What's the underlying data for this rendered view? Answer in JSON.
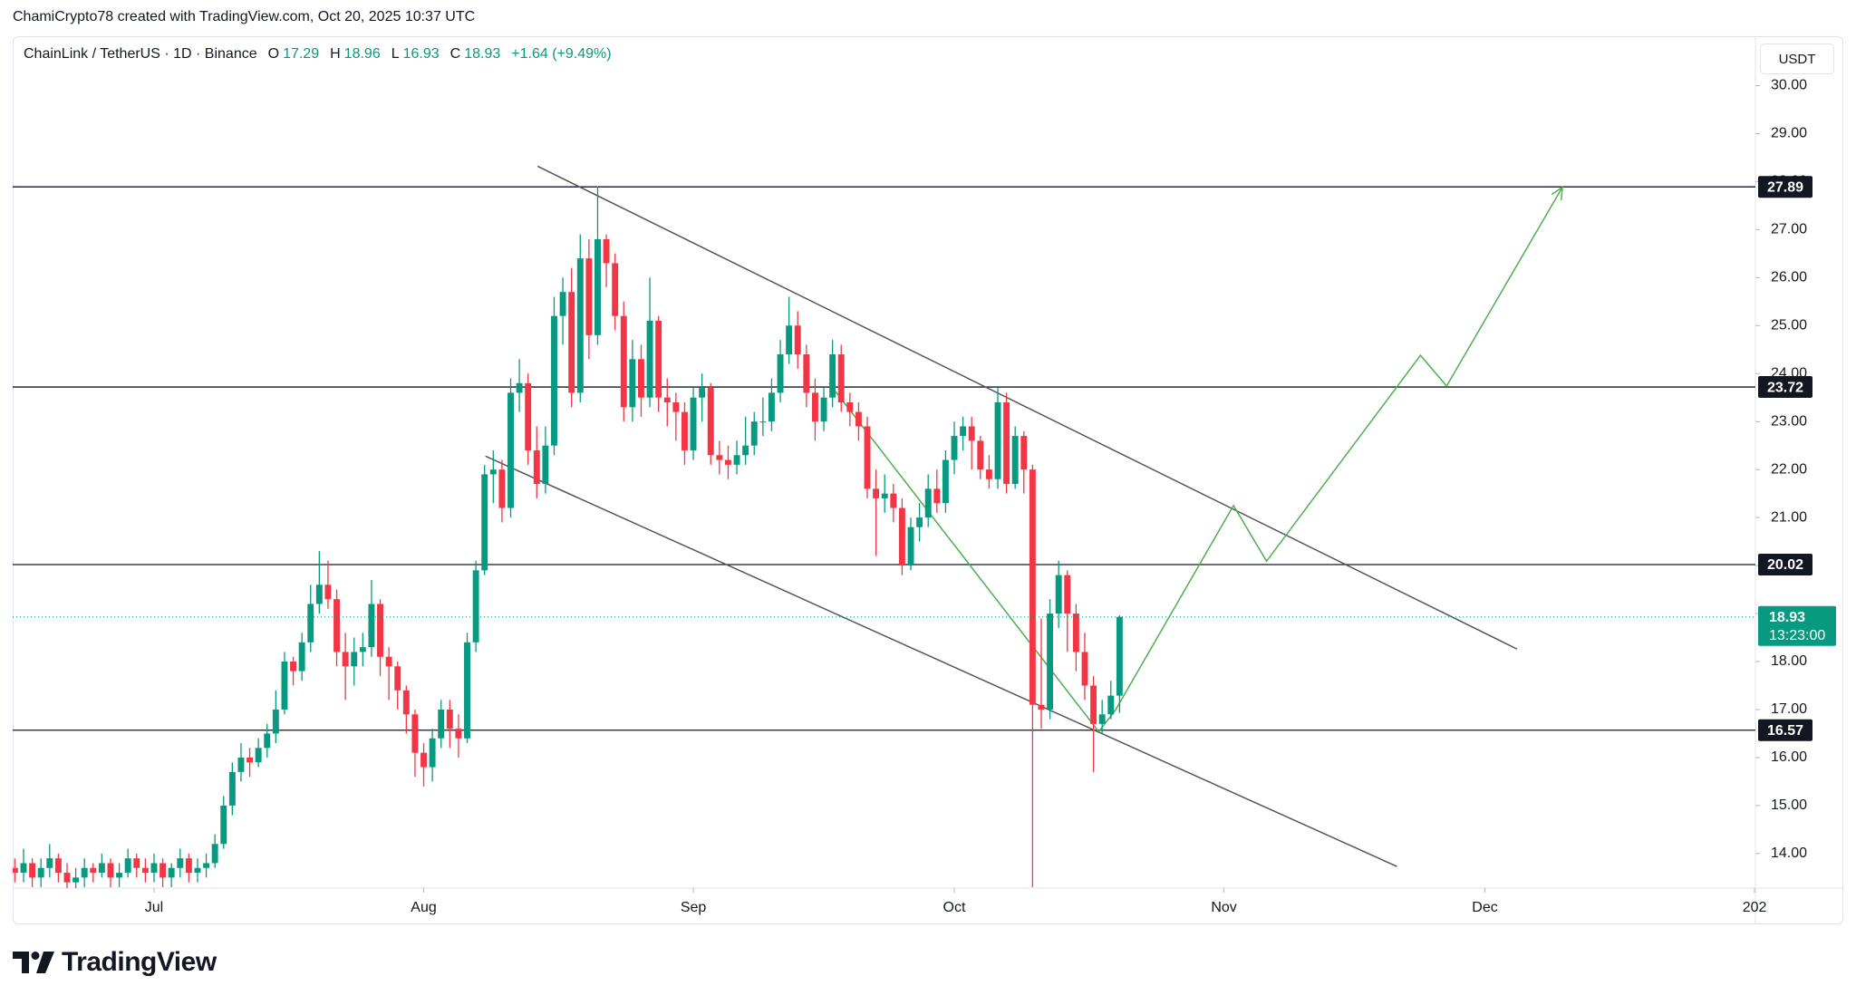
{
  "watermark": "ChamiCrypto78 created with TradingView.com, Oct 20, 2025 10:37 UTC",
  "brand": "TradingView",
  "chart_data": {
    "type": "candlestick",
    "symbol": "ChainLink / TetherUS · 1D · Binance",
    "legend": [
      {
        "label": "O",
        "value": 17.29
      },
      {
        "label": "H",
        "value": 18.96
      },
      {
        "label": "L",
        "value": 16.93
      },
      {
        "label": "C",
        "value": 18.93
      }
    ],
    "change": "+1.64 (+9.49%)",
    "currency": "USDT",
    "up_color": "#089981",
    "down_color": "#f23645",
    "candles": [
      [
        13.7,
        13.9,
        13.4,
        13.6
      ],
      [
        13.6,
        14.1,
        13.4,
        13.8
      ],
      [
        13.8,
        13.9,
        13.3,
        13.5
      ],
      [
        13.5,
        13.9,
        13.3,
        13.7
      ],
      [
        13.7,
        14.2,
        13.5,
        13.9
      ],
      [
        13.9,
        14.0,
        13.4,
        13.6
      ],
      [
        13.6,
        13.8,
        13.2,
        13.4
      ],
      [
        13.4,
        13.7,
        13.2,
        13.5
      ],
      [
        13.5,
        13.9,
        13.3,
        13.7
      ],
      [
        13.7,
        13.8,
        13.4,
        13.6
      ],
      [
        13.6,
        14.0,
        13.5,
        13.8
      ],
      [
        13.8,
        13.9,
        13.3,
        13.5
      ],
      [
        13.5,
        13.8,
        13.3,
        13.6
      ],
      [
        13.6,
        14.1,
        13.5,
        13.9
      ],
      [
        13.9,
        14.0,
        13.5,
        13.7
      ],
      [
        13.7,
        13.9,
        13.4,
        13.6
      ],
      [
        13.6,
        14.0,
        13.4,
        13.8
      ],
      [
        13.8,
        13.9,
        13.3,
        13.5
      ],
      [
        13.5,
        13.8,
        13.3,
        13.7
      ],
      [
        13.7,
        14.1,
        13.5,
        13.9
      ],
      [
        13.9,
        14.0,
        13.4,
        13.6
      ],
      [
        13.6,
        13.9,
        13.4,
        13.7
      ],
      [
        13.7,
        14.0,
        13.5,
        13.8
      ],
      [
        13.8,
        14.4,
        13.7,
        14.2
      ],
      [
        14.2,
        15.2,
        14.1,
        15.0
      ],
      [
        15.0,
        15.9,
        14.8,
        15.7
      ],
      [
        15.7,
        16.3,
        15.5,
        16.0
      ],
      [
        16.0,
        16.2,
        15.6,
        15.9
      ],
      [
        15.9,
        16.4,
        15.8,
        16.2
      ],
      [
        16.2,
        16.7,
        16.0,
        16.5
      ],
      [
        16.5,
        17.4,
        16.3,
        17.0
      ],
      [
        17.0,
        18.2,
        16.9,
        18.0
      ],
      [
        18.0,
        18.1,
        17.5,
        17.8
      ],
      [
        17.8,
        18.6,
        17.6,
        18.4
      ],
      [
        18.4,
        19.6,
        18.2,
        19.2
      ],
      [
        19.2,
        20.3,
        19.0,
        19.6
      ],
      [
        19.6,
        20.1,
        19.1,
        19.3
      ],
      [
        19.3,
        19.5,
        17.9,
        18.2
      ],
      [
        18.2,
        18.6,
        17.2,
        17.9
      ],
      [
        17.9,
        18.5,
        17.5,
        18.2
      ],
      [
        18.2,
        18.6,
        17.9,
        18.3
      ],
      [
        18.3,
        19.7,
        18.1,
        19.2
      ],
      [
        19.2,
        19.3,
        17.7,
        18.1
      ],
      [
        18.1,
        18.3,
        17.2,
        17.9
      ],
      [
        17.9,
        18.0,
        17.0,
        17.4
      ],
      [
        17.4,
        17.5,
        16.5,
        16.9
      ],
      [
        16.9,
        17.0,
        15.6,
        16.1
      ],
      [
        16.1,
        16.3,
        15.4,
        15.8
      ],
      [
        15.8,
        16.6,
        15.5,
        16.4
      ],
      [
        16.4,
        17.2,
        16.2,
        17.0
      ],
      [
        17.0,
        17.2,
        16.2,
        16.6
      ],
      [
        16.6,
        16.9,
        16.0,
        16.4
      ],
      [
        16.4,
        18.6,
        16.3,
        18.4
      ],
      [
        18.4,
        20.1,
        18.2,
        19.9
      ],
      [
        19.9,
        22.1,
        19.8,
        21.9
      ],
      [
        21.9,
        22.4,
        21.3,
        22.0
      ],
      [
        22.0,
        22.2,
        20.9,
        21.2
      ],
      [
        21.2,
        23.9,
        21.0,
        23.6
      ],
      [
        23.6,
        24.3,
        23.2,
        23.8
      ],
      [
        23.8,
        24.0,
        22.1,
        22.4
      ],
      [
        22.4,
        22.9,
        21.4,
        21.7
      ],
      [
        21.7,
        22.9,
        21.5,
        22.5
      ],
      [
        22.5,
        25.6,
        22.3,
        25.2
      ],
      [
        25.2,
        26.0,
        24.6,
        25.7
      ],
      [
        25.7,
        26.2,
        23.3,
        23.6
      ],
      [
        23.6,
        26.9,
        23.4,
        26.4
      ],
      [
        26.4,
        26.8,
        24.3,
        24.8
      ],
      [
        24.8,
        27.9,
        24.6,
        26.8
      ],
      [
        26.8,
        26.9,
        25.8,
        26.3
      ],
      [
        26.3,
        26.5,
        24.9,
        25.2
      ],
      [
        25.2,
        25.5,
        23.0,
        23.3
      ],
      [
        23.3,
        24.7,
        23.0,
        24.3
      ],
      [
        24.3,
        24.6,
        23.1,
        23.5
      ],
      [
        23.5,
        26.0,
        23.3,
        25.1
      ],
      [
        25.1,
        25.2,
        23.2,
        23.5
      ],
      [
        23.5,
        23.9,
        22.9,
        23.4
      ],
      [
        23.4,
        23.6,
        22.6,
        23.2
      ],
      [
        23.2,
        23.4,
        22.1,
        22.4
      ],
      [
        22.4,
        23.7,
        22.2,
        23.5
      ],
      [
        23.5,
        24.0,
        23.0,
        23.7
      ],
      [
        23.7,
        23.8,
        22.1,
        22.3
      ],
      [
        22.3,
        22.6,
        21.9,
        22.2
      ],
      [
        22.2,
        22.5,
        21.8,
        22.1
      ],
      [
        22.1,
        22.6,
        21.9,
        22.3
      ],
      [
        22.3,
        23.1,
        22.1,
        22.5
      ],
      [
        22.5,
        23.2,
        22.3,
        23.0
      ],
      [
        23.0,
        23.5,
        22.7,
        23.0
      ],
      [
        23.0,
        23.9,
        22.8,
        23.6
      ],
      [
        23.6,
        24.7,
        23.4,
        24.4
      ],
      [
        24.4,
        25.6,
        24.2,
        25.0
      ],
      [
        25.0,
        25.3,
        24.1,
        24.4
      ],
      [
        24.4,
        24.6,
        23.3,
        23.6
      ],
      [
        23.6,
        23.9,
        22.6,
        23.0
      ],
      [
        23.0,
        23.7,
        22.8,
        23.5
      ],
      [
        23.5,
        24.7,
        23.3,
        24.4
      ],
      [
        24.4,
        24.6,
        23.2,
        23.4
      ],
      [
        23.4,
        23.6,
        22.9,
        23.2
      ],
      [
        23.2,
        23.4,
        22.6,
        22.9
      ],
      [
        22.9,
        23.1,
        21.4,
        21.6
      ],
      [
        21.6,
        22.0,
        20.2,
        21.4
      ],
      [
        21.4,
        21.9,
        21.1,
        21.5
      ],
      [
        21.5,
        21.7,
        20.9,
        21.2
      ],
      [
        21.2,
        21.4,
        19.8,
        20.0
      ],
      [
        20.0,
        21.0,
        19.9,
        20.8
      ],
      [
        20.8,
        21.3,
        20.5,
        21.0
      ],
      [
        21.0,
        21.9,
        20.8,
        21.6
      ],
      [
        21.6,
        22.0,
        21.1,
        21.3
      ],
      [
        21.3,
        22.4,
        21.1,
        22.2
      ],
      [
        22.2,
        23.0,
        21.9,
        22.7
      ],
      [
        22.7,
        23.1,
        22.4,
        22.9
      ],
      [
        22.9,
        23.1,
        22.0,
        22.6
      ],
      [
        22.6,
        22.7,
        21.8,
        22.0
      ],
      [
        22.0,
        22.3,
        21.6,
        21.8
      ],
      [
        21.8,
        23.7,
        21.6,
        23.4
      ],
      [
        23.4,
        23.6,
        21.5,
        21.7
      ],
      [
        21.7,
        22.9,
        21.6,
        22.7
      ],
      [
        22.7,
        22.8,
        21.5,
        22.0
      ],
      [
        22.0,
        22.1,
        13.3,
        17.1
      ],
      [
        17.1,
        18.9,
        16.6,
        17.0
      ],
      [
        17.0,
        19.3,
        16.8,
        19.0
      ],
      [
        19.0,
        20.1,
        18.7,
        19.8
      ],
      [
        19.8,
        19.9,
        18.2,
        19.0
      ],
      [
        19.0,
        19.2,
        17.8,
        18.2
      ],
      [
        18.2,
        18.6,
        17.2,
        17.5
      ],
      [
        17.5,
        17.7,
        15.7,
        16.7
      ],
      [
        16.7,
        17.2,
        16.5,
        16.9
      ],
      [
        16.9,
        17.6,
        16.8,
        17.29
      ],
      [
        17.29,
        18.96,
        16.93,
        18.93
      ]
    ],
    "xlim": [
      -0.25,
      200.1
    ],
    "xticks": [
      {
        "value": 16,
        "label": "Jul"
      },
      {
        "value": 47,
        "label": "Aug"
      },
      {
        "value": 78,
        "label": "Sep"
      },
      {
        "value": 108,
        "label": "Oct"
      },
      {
        "value": 139,
        "label": "Nov"
      },
      {
        "value": 169,
        "label": "Dec"
      },
      {
        "value": 200,
        "label": "202"
      }
    ],
    "ylim": [
      13.28,
      30.99
    ],
    "yticks": [
      {
        "value": 14,
        "label": "14.00"
      },
      {
        "value": 15,
        "label": "15.00"
      },
      {
        "value": 16,
        "label": "16.00"
      },
      {
        "value": 17,
        "label": "17.00"
      },
      {
        "value": 18,
        "label": "18.00"
      },
      {
        "value": 19,
        "label": "19.00"
      },
      {
        "value": 20,
        "label": "20.00"
      },
      {
        "value": 21,
        "label": "21.00"
      },
      {
        "value": 22,
        "label": "22.00"
      },
      {
        "value": 23,
        "label": "23.00"
      },
      {
        "value": 24,
        "label": "24.00"
      },
      {
        "value": 25,
        "label": "25.00"
      },
      {
        "value": 26,
        "label": "26.00"
      },
      {
        "value": 27,
        "label": "27.00"
      },
      {
        "value": 28,
        "label": "28.00"
      },
      {
        "value": 29,
        "label": "29.00"
      },
      {
        "value": 30,
        "label": "30.00"
      }
    ],
    "levels": [
      27.89,
      23.72,
      20.02,
      16.57
    ],
    "last_price": 18.93,
    "countdown": "13:23:00",
    "drawings": [
      {
        "color": "#555555",
        "arrow": false,
        "x": [
          60.1,
          172.7
        ],
        "y": [
          28.32,
          18.26
        ]
      },
      {
        "color": "#555555",
        "arrow": false,
        "x": [
          54.1,
          158.9
        ],
        "y": [
          22.28,
          13.73
        ]
      },
      {
        "color": "#4caf50",
        "arrow": false,
        "x": [
          93.6,
          124.6
        ],
        "y": [
          23.8,
          16.54
        ]
      },
      {
        "color": "#4caf50",
        "arrow": true,
        "x": [
          124.6,
          126.5,
          140.1,
          143.9,
          161.6,
          164.6,
          177.9
        ],
        "y": [
          16.54,
          16.98,
          21.25,
          20.09,
          24.38,
          23.74,
          27.88
        ]
      }
    ]
  }
}
